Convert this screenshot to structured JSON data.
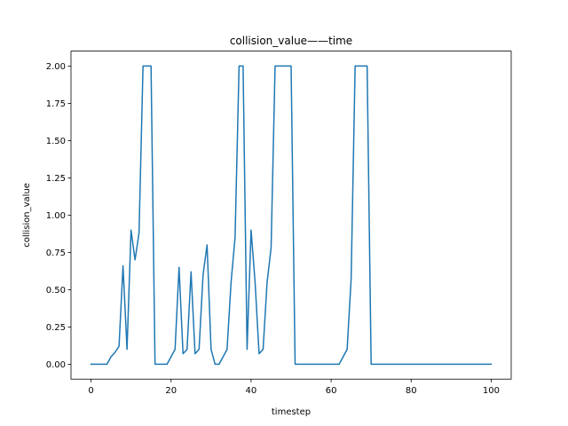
{
  "chart_data": {
    "type": "line",
    "title": "collision_value——time",
    "xlabel": "timestep",
    "ylabel": "collision_value",
    "xlim": [
      -5,
      105
    ],
    "ylim": [
      -0.1,
      2.1
    ],
    "xticks": [
      0,
      20,
      40,
      60,
      80,
      100
    ],
    "xtick_labels": [
      "0",
      "20",
      "40",
      "60",
      "80",
      "100"
    ],
    "yticks": [
      0.0,
      0.25,
      0.5,
      0.75,
      1.0,
      1.25,
      1.5,
      1.75,
      2.0
    ],
    "ytick_labels": [
      "0.00",
      "0.25",
      "0.50",
      "0.75",
      "1.00",
      "1.25",
      "1.50",
      "1.75",
      "2.00"
    ],
    "grid": false,
    "series": [
      {
        "color": "#1f77b4",
        "x": [
          0,
          1,
          2,
          3,
          4,
          5,
          6,
          7,
          8,
          9,
          10,
          11,
          12,
          13,
          14,
          15,
          16,
          17,
          18,
          19,
          20,
          21,
          22,
          23,
          24,
          25,
          26,
          27,
          28,
          29,
          30,
          31,
          32,
          33,
          34,
          35,
          36,
          37,
          38,
          39,
          40,
          41,
          42,
          43,
          44,
          45,
          46,
          47,
          48,
          49,
          50,
          51,
          52,
          53,
          54,
          55,
          56,
          57,
          58,
          59,
          60,
          61,
          62,
          63,
          64,
          65,
          66,
          67,
          68,
          69,
          70,
          71,
          72,
          73,
          74,
          75,
          76,
          77,
          78,
          79,
          80,
          81,
          82,
          83,
          84,
          85,
          86,
          87,
          88,
          89,
          90,
          91,
          92,
          93,
          94,
          95,
          96,
          97,
          98,
          99,
          100
        ],
        "y": [
          0,
          0,
          0,
          0,
          0,
          0.05,
          0.08,
          0.12,
          0.66,
          0.1,
          0.9,
          0.7,
          0.88,
          2.0,
          2.0,
          2.0,
          0,
          0,
          0,
          0,
          0.05,
          0.1,
          0.65,
          0.07,
          0.1,
          0.62,
          0.07,
          0.1,
          0.6,
          0.8,
          0.1,
          0,
          0,
          0.05,
          0.1,
          0.55,
          0.85,
          2.0,
          2.0,
          0.1,
          0.9,
          0.55,
          0.07,
          0.1,
          0.55,
          0.78,
          2.0,
          2.0,
          2.0,
          2.0,
          2.0,
          0,
          0,
          0,
          0,
          0,
          0,
          0,
          0,
          0,
          0,
          0,
          0,
          0.05,
          0.1,
          0.57,
          2.0,
          2.0,
          2.0,
          2.0,
          0,
          0,
          0,
          0,
          0,
          0,
          0,
          0,
          0,
          0,
          0,
          0,
          0,
          0,
          0,
          0,
          0,
          0,
          0,
          0,
          0,
          0,
          0,
          0,
          0,
          0,
          0,
          0,
          0,
          0,
          0
        ]
      }
    ]
  }
}
